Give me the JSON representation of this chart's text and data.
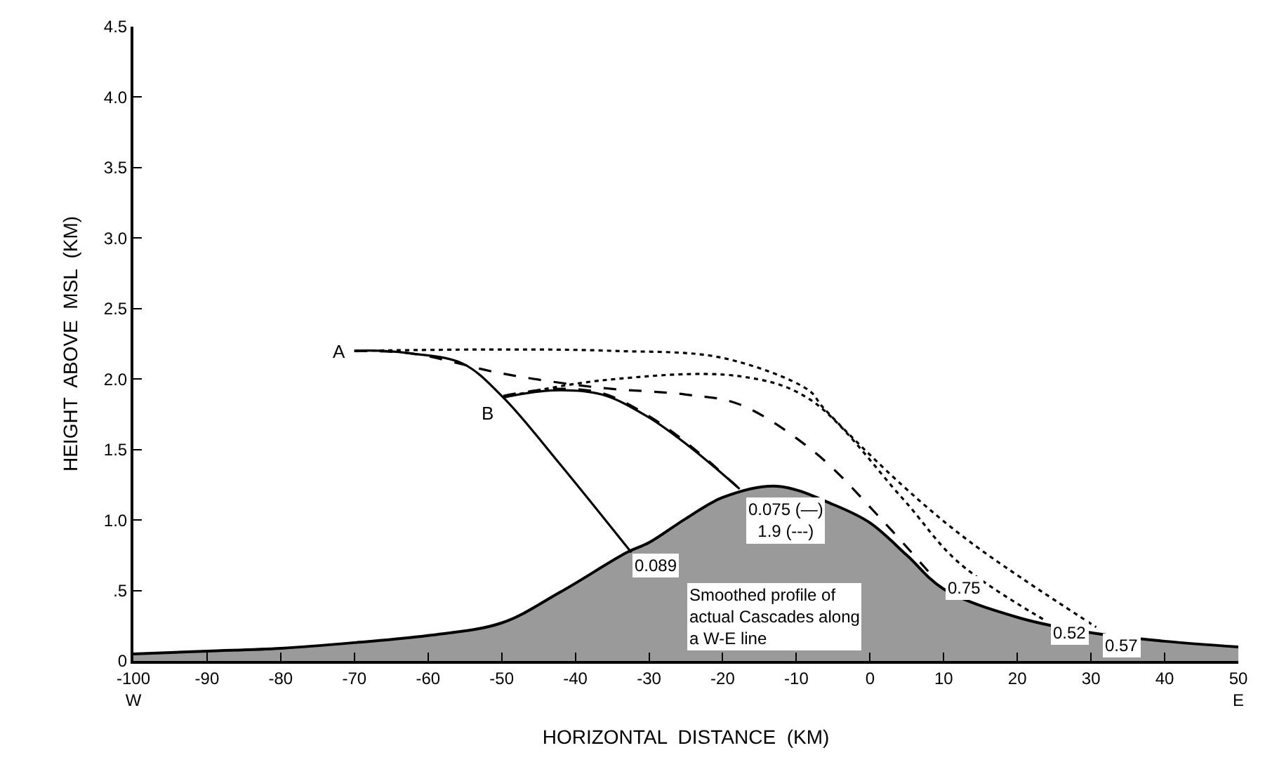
{
  "chart_data": {
    "type": "line",
    "xlabel": "HORIZONTAL  DISTANCE  (KM)",
    "ylabel": "HEIGHT  ABOVE  MSL  (KM)",
    "xlim": [
      -100,
      50
    ],
    "ylim": [
      0,
      4.5
    ],
    "xticks": [
      {
        "value": -100,
        "label": "-100\nW"
      },
      -90,
      -80,
      -70,
      -60,
      -50,
      -40,
      -30,
      -20,
      -10,
      0,
      10,
      20,
      30,
      40,
      {
        "value": 50,
        "label": "50\nE"
      }
    ],
    "yticks": [
      0,
      {
        "value": 0.5,
        "label": ".5"
      },
      {
        "value": 1,
        "label": "1.0"
      },
      1.5,
      {
        "value": 2,
        "label": "2.0"
      },
      2.5,
      {
        "value": 3,
        "label": "3.0"
      },
      3.5,
      {
        "value": 4,
        "label": "4.0"
      },
      4.5
    ],
    "marker": "none",
    "series": [
      {
        "type": "area",
        "color": "#9a9a9a",
        "x": [
          -100,
          -90,
          -80,
          -70,
          -60,
          -50,
          -42,
          -33,
          -30,
          -25,
          -20,
          -12.6,
          -5,
          0,
          5,
          10,
          20,
          30,
          40,
          50
        ],
        "values": [
          0.05,
          0.07,
          0.09,
          0.13,
          0.18,
          0.27,
          0.49,
          0.77,
          0.84,
          1.01,
          1.16,
          1.24,
          1.11,
          0.98,
          0.75,
          0.51,
          0.31,
          0.2,
          0.14,
          0.1
        ]
      },
      {
        "color": "#000000",
        "line_style": "solid",
        "x": [
          -70,
          -66,
          -62,
          -55.3,
          -49.8,
          -42.3,
          -32.4
        ],
        "values": [
          2.2,
          2.2,
          2.18,
          2.11,
          1.87,
          1.41,
          0.77
        ]
      },
      {
        "color": "#000000",
        "line_style": "dashed",
        "x": [
          -70,
          -62,
          -50,
          -37,
          -25,
          -17.7,
          -7.5,
          1.1,
          9
        ],
        "values": [
          2.2,
          2.18,
          2.04,
          1.94,
          1.89,
          1.82,
          1.48,
          1.03,
          0.57
        ]
      },
      {
        "color": "#000000",
        "line_style": "dotted",
        "x": [
          -70,
          -50,
          -35,
          -20,
          -8.3,
          -6.4,
          4.3,
          13.7,
          30.7
        ],
        "values": [
          2.2,
          2.21,
          2.2,
          2.15,
          1.92,
          1.8,
          1.25,
          0.84,
          0.24
        ]
      },
      {
        "color": "#000000",
        "line_style": "solid",
        "x": [
          -49.8,
          -43,
          -36.4,
          -30.1,
          -24,
          -17.7
        ],
        "values": [
          1.87,
          1.92,
          1.89,
          1.73,
          1.5,
          1.22
        ]
      },
      {
        "color": "#000000",
        "line_style": "dashed",
        "x": [
          -49.8,
          -43,
          -36.4,
          -30.1,
          -24,
          -17.7
        ],
        "values": [
          1.88,
          1.93,
          1.9,
          1.74,
          1.51,
          1.22
        ]
      },
      {
        "color": "#000000",
        "line_style": "dotted",
        "x": [
          -49.8,
          -36.5,
          -17.7,
          -8.3,
          4.3,
          12,
          23.7
        ],
        "values": [
          1.87,
          1.99,
          2.02,
          1.86,
          1.16,
          0.7,
          0.29
        ]
      }
    ],
    "annotations": [
      {
        "text": "A",
        "x": -70,
        "y": 2.2
      },
      {
        "text": "B",
        "x": -49.8,
        "y": 1.87
      },
      {
        "text": "0.089",
        "x": -32.4,
        "y": 0.77
      },
      {
        "text": "0.075 (—)\n1.9 (---)",
        "x": -17.7,
        "y": 1.22
      },
      {
        "text": "0.75",
        "x": 9,
        "y": 0.57
      },
      {
        "text": "0.52",
        "x": 23.7,
        "y": 0.29
      },
      {
        "text": "0.57",
        "x": 30.7,
        "y": 0.24
      },
      "Smoothed profile of\nactual Cascades along\na W-E line"
    ]
  }
}
